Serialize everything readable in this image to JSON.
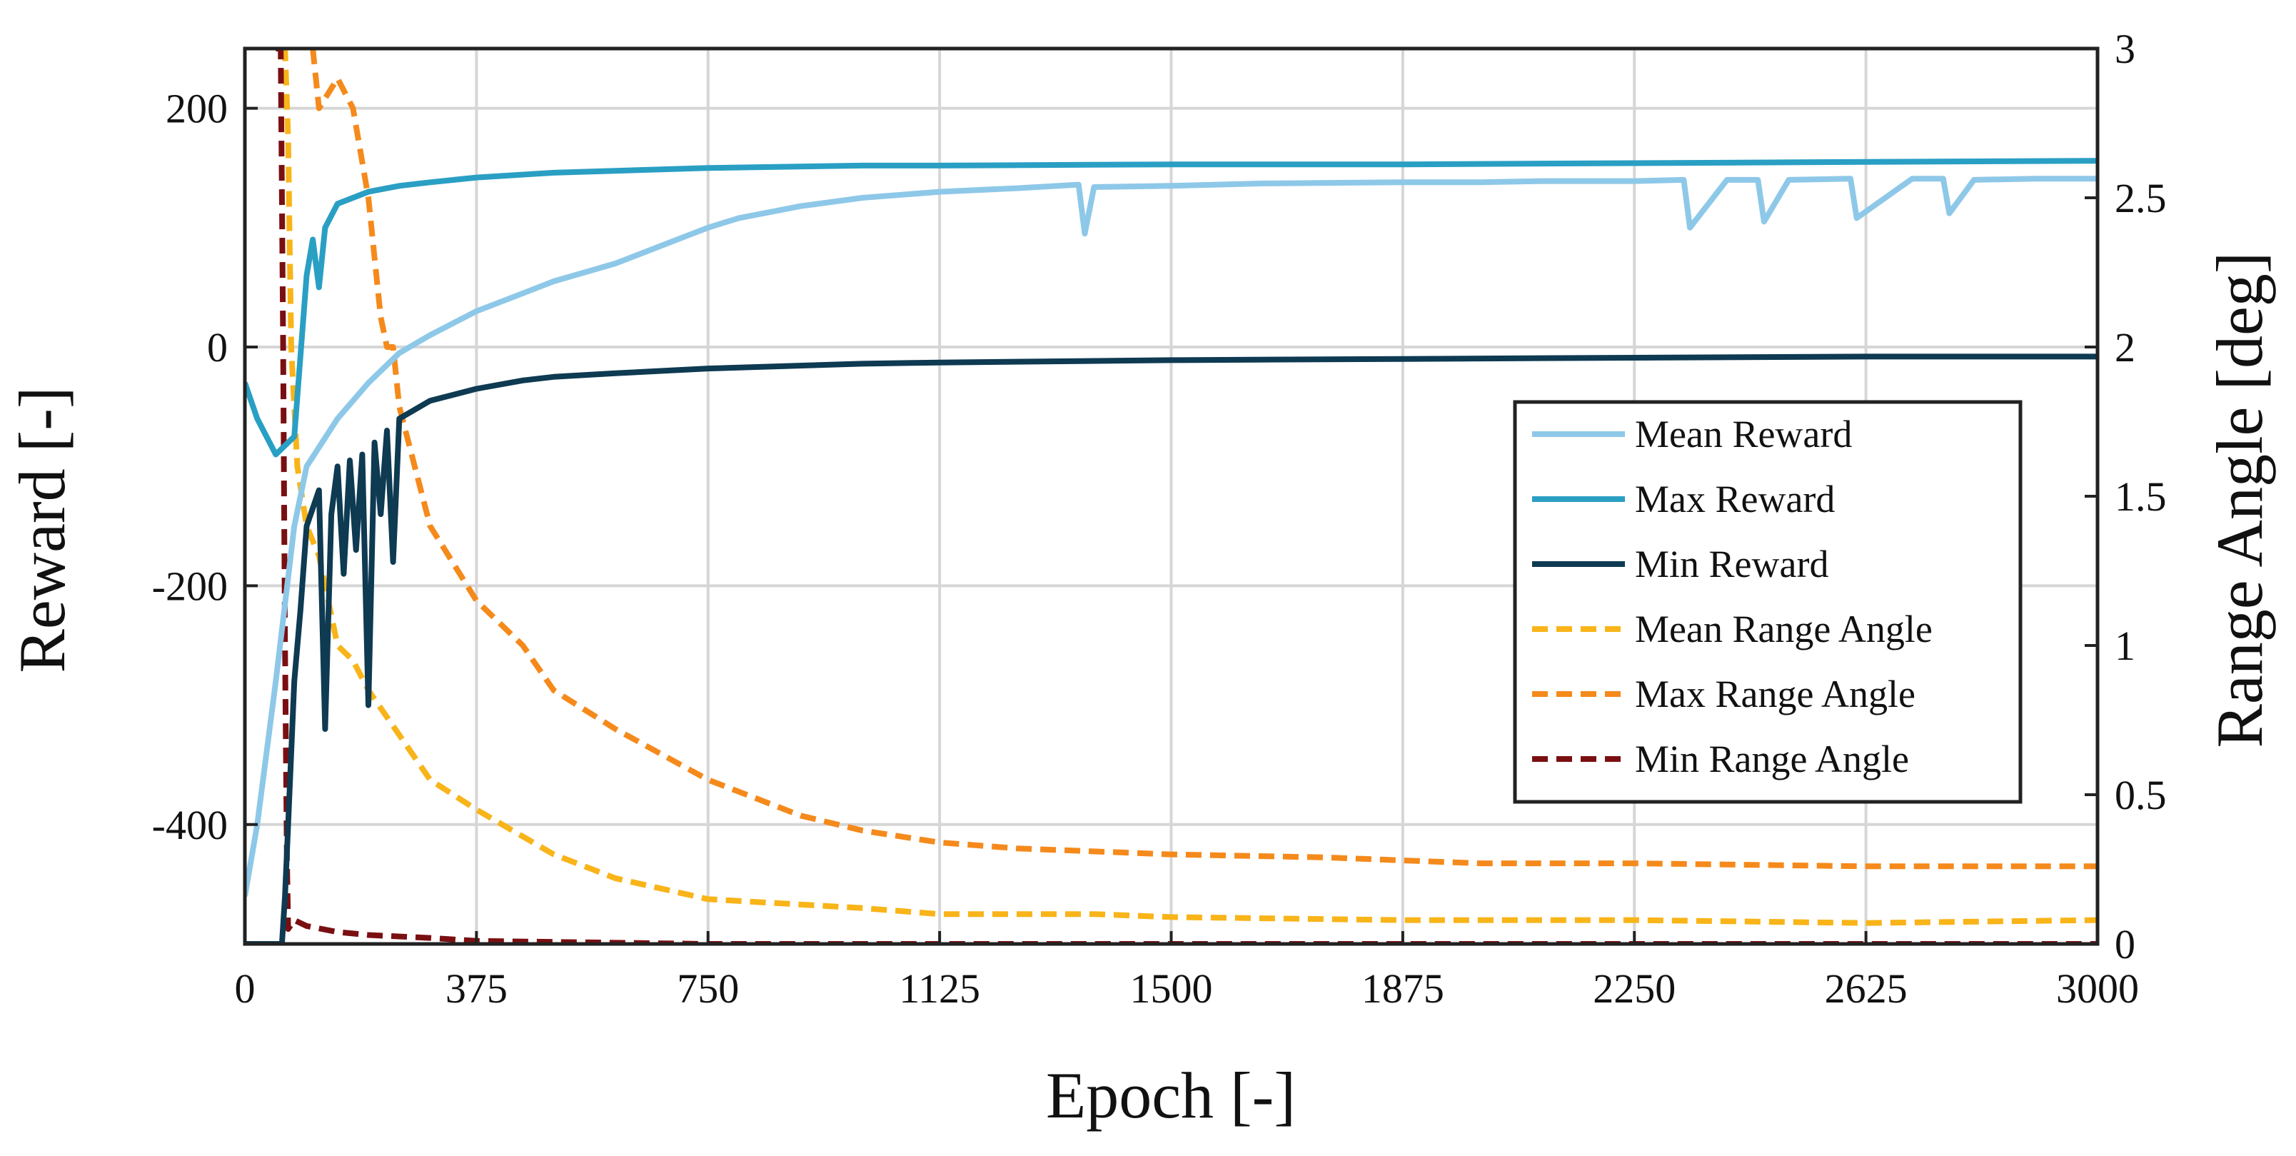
{
  "chart_data": {
    "type": "line",
    "title": "",
    "xlabel": "Epoch [-]",
    "ylabel_left": "Reward [-]",
    "ylabel_right": "Range Angle [deg]",
    "xlim": [
      0,
      3000
    ],
    "ylim_left": [
      -500,
      250
    ],
    "ylim_right": [
      0,
      3
    ],
    "grid": true,
    "legend_position": "center-right",
    "x_ticks": [
      0,
      375,
      750,
      1125,
      1500,
      1875,
      2250,
      2625,
      3000
    ],
    "x_tick_labels": [
      "0",
      "375",
      "750",
      "1125",
      "1500",
      "1875",
      "2250",
      "2625",
      "3000"
    ],
    "y_left_ticks": [
      -400,
      -200,
      0,
      200
    ],
    "y_left_tick_labels": [
      "-400",
      "-200",
      "0",
      "200"
    ],
    "y_right_ticks": [
      0,
      0.5,
      1,
      1.5,
      2,
      2.5,
      3
    ],
    "y_right_tick_labels": [
      "0",
      "0.5",
      "1",
      "1.5",
      "2",
      "2.5",
      "3"
    ],
    "series": [
      {
        "name": "Mean Reward",
        "axis": "left",
        "style": "solid",
        "color": "#8ec8e8",
        "x": [
          0,
          20,
          50,
          80,
          100,
          150,
          200,
          250,
          300,
          375,
          450,
          500,
          600,
          700,
          750,
          800,
          900,
          1000,
          1125,
          1250,
          1350,
          1360,
          1375,
          1500,
          1650,
          1875,
          2000,
          2100,
          2250,
          2330,
          2340,
          2400,
          2450,
          2460,
          2500,
          2600,
          2610,
          2700,
          2750,
          2760,
          2800,
          2900,
          3000
        ],
        "y": [
          -460,
          -400,
          -280,
          -150,
          -100,
          -60,
          -30,
          -5,
          10,
          30,
          45,
          55,
          70,
          90,
          100,
          108,
          118,
          125,
          130,
          133,
          136,
          95,
          134,
          135,
          137,
          138,
          138,
          139,
          139,
          140,
          100,
          140,
          140,
          105,
          140,
          141,
          108,
          141,
          141,
          112,
          140,
          141,
          141
        ]
      },
      {
        "name": "Max Reward",
        "axis": "left",
        "style": "solid",
        "color": "#2a9fc4",
        "x": [
          0,
          20,
          50,
          80,
          100,
          110,
          120,
          130,
          150,
          200,
          250,
          300,
          375,
          500,
          750,
          1000,
          1125,
          1500,
          1875,
          2250,
          2625,
          3000
        ],
        "y": [
          -30,
          -60,
          -90,
          -75,
          60,
          90,
          50,
          100,
          120,
          130,
          135,
          138,
          142,
          146,
          150,
          152,
          152,
          153,
          153,
          154,
          155,
          156
        ]
      },
      {
        "name": "Min Reward",
        "axis": "left",
        "style": "solid",
        "color": "#0e3a52",
        "x": [
          0,
          60,
          65,
          70,
          80,
          90,
          100,
          120,
          130,
          140,
          150,
          160,
          170,
          180,
          190,
          200,
          210,
          220,
          230,
          240,
          250,
          300,
          375,
          450,
          500,
          600,
          750,
          1000,
          1125,
          1500,
          1875,
          2250,
          2625,
          3000
        ],
        "y": [
          -500,
          -500,
          -460,
          -400,
          -280,
          -220,
          -150,
          -120,
          -320,
          -140,
          -100,
          -190,
          -95,
          -170,
          -90,
          -300,
          -80,
          -140,
          -70,
          -180,
          -60,
          -45,
          -35,
          -28,
          -25,
          -22,
          -18,
          -14,
          -13,
          -11,
          -10,
          -9,
          -8,
          -8
        ]
      },
      {
        "name": "Mean Range Angle",
        "axis": "right",
        "style": "dashed",
        "color": "#f8b418",
        "x": [
          60,
          65,
          70,
          75,
          85,
          100,
          120,
          150,
          175,
          200,
          250,
          300,
          375,
          450,
          500,
          600,
          750,
          1000,
          1125,
          1375,
          1500,
          1875,
          2250,
          2625,
          3000
        ],
        "y": [
          3.0,
          3.0,
          2.7,
          2.0,
          1.6,
          1.4,
          1.3,
          1.0,
          0.95,
          0.85,
          0.7,
          0.55,
          0.45,
          0.36,
          0.3,
          0.22,
          0.15,
          0.12,
          0.1,
          0.1,
          0.09,
          0.08,
          0.08,
          0.07,
          0.08
        ]
      },
      {
        "name": "Max Range Angle",
        "axis": "right",
        "style": "dashed",
        "color": "#f58a1c",
        "x": [
          110,
          120,
          150,
          175,
          200,
          210,
          220,
          230,
          240,
          250,
          300,
          375,
          450,
          500,
          600,
          750,
          900,
          1000,
          1125,
          1250,
          1500,
          1750,
          1875,
          2000,
          2250,
          2625,
          3000
        ],
        "y": [
          3.0,
          2.8,
          2.9,
          2.8,
          2.5,
          2.3,
          2.1,
          2.0,
          2.0,
          1.8,
          1.4,
          1.15,
          1.0,
          0.85,
          0.72,
          0.55,
          0.43,
          0.38,
          0.34,
          0.32,
          0.3,
          0.29,
          0.28,
          0.27,
          0.27,
          0.26,
          0.26
        ]
      },
      {
        "name": "Min Range Angle",
        "axis": "right",
        "style": "dashed",
        "color": "#7a0f12",
        "x": [
          50,
          58,
          62,
          65,
          68,
          70,
          80,
          100,
          150,
          200,
          300,
          375,
          750,
          1500,
          3000
        ],
        "y": [
          3.0,
          3.0,
          2.0,
          1.0,
          0.3,
          0.05,
          0.08,
          0.06,
          0.04,
          0.03,
          0.02,
          0.01,
          0.0,
          0.0,
          0.0
        ]
      }
    ]
  }
}
